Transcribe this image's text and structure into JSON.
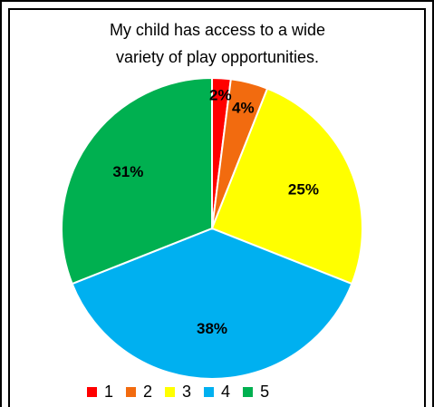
{
  "chart_data": {
    "type": "pie",
    "title": "My child has access to a wide variety of play opportunities.",
    "title_lines": [
      "My child has access to a wide",
      "variety of play opportunities."
    ],
    "categories": [
      "1",
      "2",
      "3",
      "4",
      "5"
    ],
    "values": [
      2,
      4,
      25,
      38,
      31
    ],
    "data_labels": [
      "2%",
      "4%",
      "25%",
      "38%",
      "31%"
    ],
    "colors": [
      "#ff0000",
      "#f26b0f",
      "#ffff00",
      "#00b0f0",
      "#00b050"
    ],
    "legend": {
      "position": "bottom",
      "entries": [
        "1",
        "2",
        "3",
        "4",
        "5"
      ]
    },
    "start_angle": "12 o'clock",
    "direction": "clockwise"
  }
}
